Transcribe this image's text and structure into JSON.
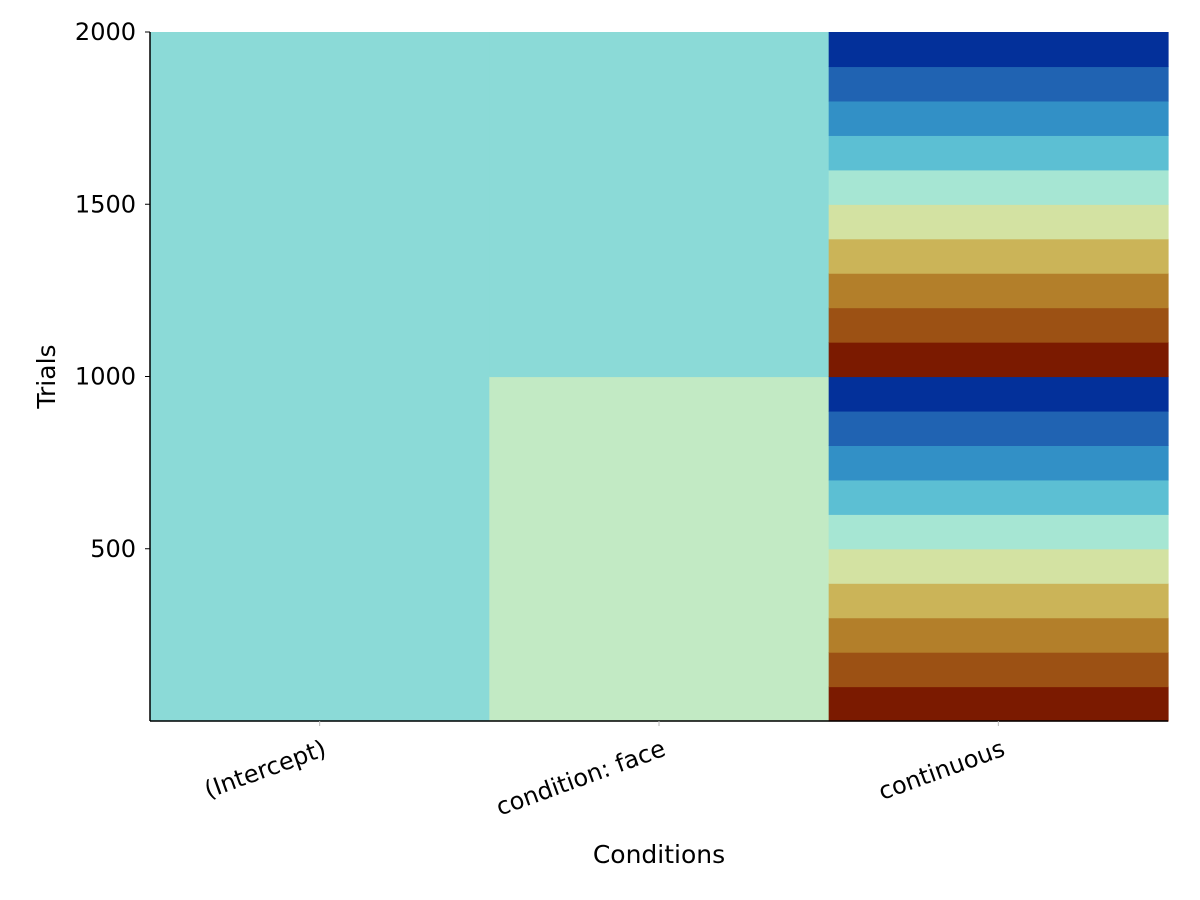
{
  "chart_data": {
    "type": "heatmap",
    "title": "",
    "xlabel": "Conditions",
    "ylabel": "Trials",
    "categories": [
      "(Intercept)",
      "condition: face",
      "continuous"
    ],
    "ylim": [
      0,
      2000
    ],
    "yticks": [
      500,
      1000,
      1500,
      2000
    ],
    "ytick_labels": [
      "500",
      "1000",
      "1500",
      "2000"
    ],
    "grid": false,
    "legend": "none",
    "columns": [
      {
        "name": "(Intercept)",
        "cells": [
          {
            "y0": 0,
            "y1": 2000,
            "color": "#8BDAD7"
          }
        ]
      },
      {
        "name": "condition: face",
        "cells": [
          {
            "y0": 0,
            "y1": 1000,
            "color": "#C2EAC4"
          },
          {
            "y0": 1000,
            "y1": 2000,
            "color": "#8BDAD7"
          }
        ]
      },
      {
        "name": "continuous",
        "cells": [
          {
            "y0": 0,
            "y1": 100,
            "color": "#7B1A00"
          },
          {
            "y0": 100,
            "y1": 200,
            "color": "#9C5114"
          },
          {
            "y0": 200,
            "y1": 300,
            "color": "#B37F2A"
          },
          {
            "y0": 300,
            "y1": 400,
            "color": "#CBB458"
          },
          {
            "y0": 400,
            "y1": 500,
            "color": "#D3E2A2"
          },
          {
            "y0": 500,
            "y1": 600,
            "color": "#A6E6D3"
          },
          {
            "y0": 600,
            "y1": 700,
            "color": "#5CBFD3"
          },
          {
            "y0": 700,
            "y1": 800,
            "color": "#3290C6"
          },
          {
            "y0": 800,
            "y1": 900,
            "color": "#2063B2"
          },
          {
            "y0": 900,
            "y1": 1000,
            "color": "#03309A"
          },
          {
            "y0": 1000,
            "y1": 1100,
            "color": "#7B1A00"
          },
          {
            "y0": 1100,
            "y1": 1200,
            "color": "#9C5114"
          },
          {
            "y0": 1200,
            "y1": 1300,
            "color": "#B37F2A"
          },
          {
            "y0": 1300,
            "y1": 1400,
            "color": "#CBB458"
          },
          {
            "y0": 1400,
            "y1": 1500,
            "color": "#D3E2A2"
          },
          {
            "y0": 1500,
            "y1": 1600,
            "color": "#A6E6D3"
          },
          {
            "y0": 1600,
            "y1": 1700,
            "color": "#5CBFD3"
          },
          {
            "y0": 1700,
            "y1": 1800,
            "color": "#3290C6"
          },
          {
            "y0": 1800,
            "y1": 1900,
            "color": "#2063B2"
          },
          {
            "y0": 1900,
            "y1": 2000,
            "color": "#03309A"
          }
        ]
      }
    ]
  }
}
